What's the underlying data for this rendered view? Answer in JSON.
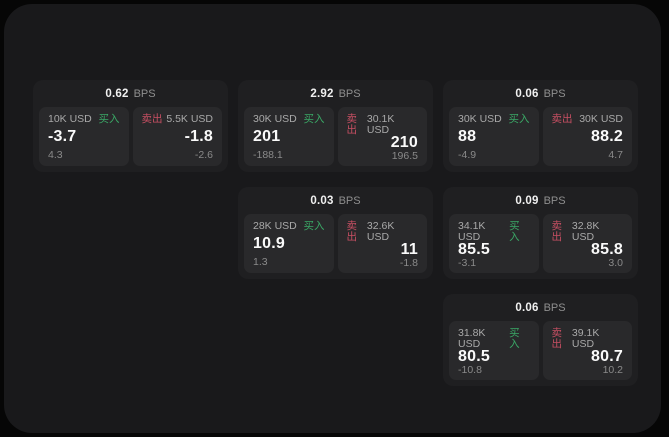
{
  "labels": {
    "bps_unit": "BPS",
    "buy": "买入",
    "sell": "卖出"
  },
  "colors": {
    "background": "#060606",
    "panel": "#19191b",
    "card": "#1f1f21",
    "pane": "#29292b",
    "buy_green": "#3aa866",
    "sell_red": "#c74f63",
    "price_white": "#fafafa",
    "label_gray": "#a9a9a9"
  },
  "cards": [
    {
      "bps": "0.62",
      "buy": {
        "amount": "10K USD",
        "price": "-3.7",
        "change": "4.3"
      },
      "sell": {
        "amount": "5.5K USD",
        "price": "-1.8",
        "change": "-2.6"
      }
    },
    {
      "bps": "2.92",
      "buy": {
        "amount": "30K USD",
        "price": "201",
        "change": "-188.1"
      },
      "sell": {
        "amount": "30.1K USD",
        "price": "210",
        "change": "196.5"
      }
    },
    {
      "bps": "0.06",
      "buy": {
        "amount": "30K USD",
        "price": "88",
        "change": "-4.9"
      },
      "sell": {
        "amount": "30K USD",
        "price": "88.2",
        "change": "4.7"
      }
    },
    {
      "bps": "0.03",
      "buy": {
        "amount": "28K USD",
        "price": "10.9",
        "change": "1.3"
      },
      "sell": {
        "amount": "32.6K USD",
        "price": "11",
        "change": "-1.8"
      }
    },
    {
      "bps": "0.09",
      "buy": {
        "amount": "34.1K USD",
        "price": "85.5",
        "change": "-3.1"
      },
      "sell": {
        "amount": "32.8K USD",
        "price": "85.8",
        "change": "3.0"
      }
    },
    {
      "bps": "0.06",
      "buy": {
        "amount": "31.8K USD",
        "price": "80.5",
        "change": "-10.8"
      },
      "sell": {
        "amount": "39.1K USD",
        "price": "80.7",
        "change": "10.2"
      }
    }
  ]
}
